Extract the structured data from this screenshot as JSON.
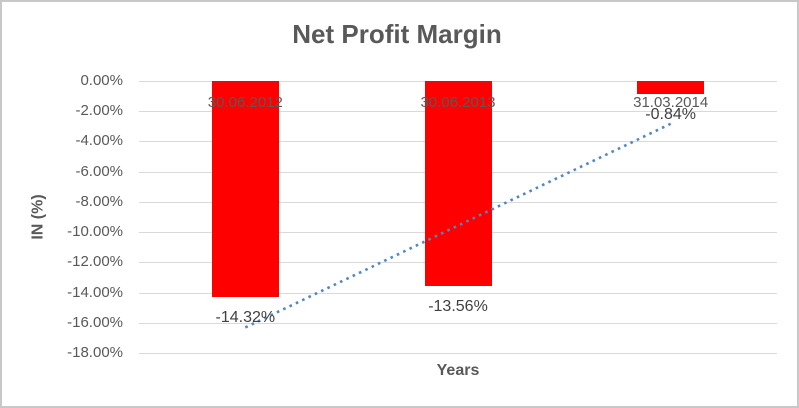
{
  "window": {
    "background": "#ffffff",
    "border_color": "#c8c8c8"
  },
  "chart_data": {
    "type": "bar",
    "title": "Net Profit Margin",
    "xlabel": "Years",
    "ylabel": "IN (%)",
    "categories": [
      "30.06.2012",
      "30.06.2013",
      "31.03.2014"
    ],
    "values": [
      -14.32,
      -13.56,
      -0.84
    ],
    "data_labels": [
      "-14.32%",
      "-13.56%",
      "-0.84%"
    ],
    "ylim": [
      -18,
      0
    ],
    "y_tick_step": -2,
    "y_tick_labels": [
      "0.00%",
      "-2.00%",
      "-4.00%",
      "-6.00%",
      "-8.00%",
      "-10.00%",
      "-12.00%",
      "-14.00%",
      "-16.00%",
      "-18.00%"
    ],
    "grid": true,
    "legend": "none",
    "bar_color": "#ff0000",
    "gridline_color": "#d9d9d9",
    "text_color": "#595959",
    "data_label_color": "#404040",
    "trendline": {
      "type": "linear",
      "style": "dotted",
      "color": "#4e87c8",
      "start_value": -16.31,
      "end_value": -2.83
    }
  }
}
